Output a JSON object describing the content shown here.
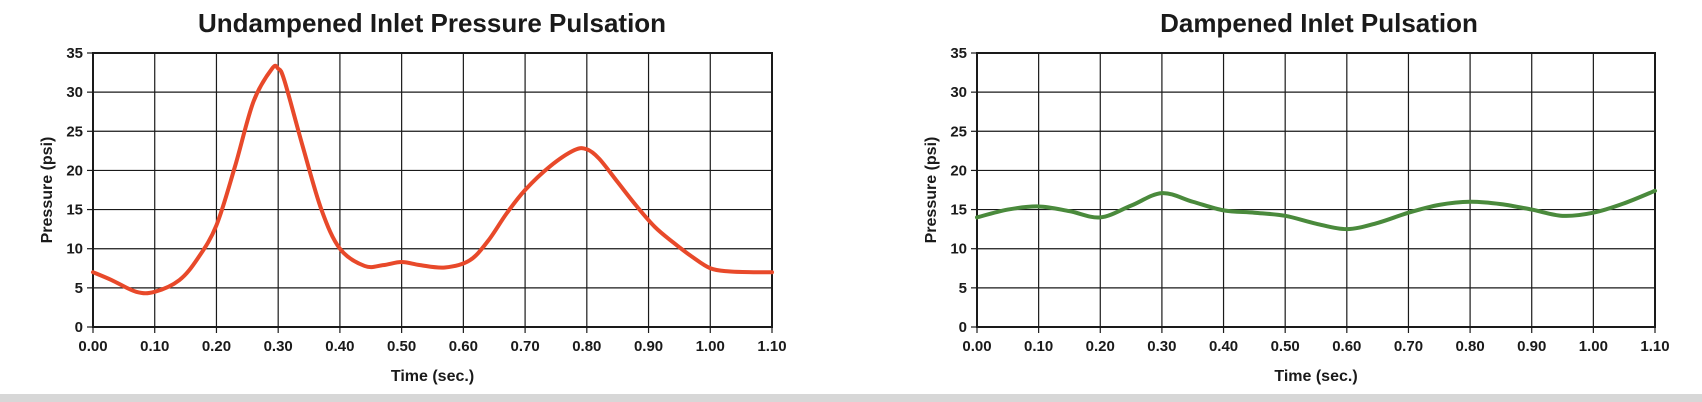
{
  "chart_data": [
    {
      "type": "line",
      "title": "Undampened Inlet Pressure Pulsation",
      "xlabel": "Time (sec.)",
      "ylabel": "Pressure (psi)",
      "xlim": [
        0,
        1.1
      ],
      "ylim": [
        0,
        35
      ],
      "xticks": [
        "0.00",
        "0.10",
        "0.20",
        "0.30",
        "0.40",
        "0.50",
        "0.60",
        "0.70",
        "0.80",
        "0.90",
        "1.00",
        "1.10"
      ],
      "yticks": [
        "0",
        "5",
        "10",
        "15",
        "20",
        "25",
        "30",
        "35"
      ],
      "grid": true,
      "series": [
        {
          "color": "#e8492a",
          "x": [
            0.0,
            0.03,
            0.07,
            0.1,
            0.14,
            0.17,
            0.2,
            0.23,
            0.26,
            0.29,
            0.3,
            0.31,
            0.34,
            0.37,
            0.4,
            0.44,
            0.47,
            0.5,
            0.53,
            0.57,
            0.61,
            0.64,
            0.67,
            0.7,
            0.74,
            0.78,
            0.8,
            0.82,
            0.85,
            0.88,
            0.91,
            0.94,
            0.97,
            1.0,
            1.03,
            1.07,
            1.1
          ],
          "y": [
            7.0,
            6.0,
            4.5,
            4.5,
            6.0,
            8.8,
            13.0,
            20.5,
            28.8,
            33.0,
            33.0,
            31.5,
            23.0,
            15.0,
            10.0,
            7.8,
            7.9,
            8.3,
            7.9,
            7.6,
            8.5,
            11.0,
            14.5,
            17.5,
            20.5,
            22.6,
            22.7,
            21.5,
            18.5,
            15.5,
            12.8,
            10.8,
            9.0,
            7.5,
            7.1,
            7.0,
            7.0
          ]
        }
      ]
    },
    {
      "type": "line",
      "title": "Dampened Inlet Pulsation",
      "xlabel": "Time (sec.)",
      "ylabel": "Pressure (psi)",
      "xlim": [
        0,
        1.1
      ],
      "ylim": [
        0,
        35
      ],
      "xticks": [
        "0.00",
        "0.10",
        "0.20",
        "0.30",
        "0.40",
        "0.50",
        "0.60",
        "0.70",
        "0.80",
        "0.90",
        "1.00",
        "1.10"
      ],
      "yticks": [
        "0",
        "5",
        "10",
        "15",
        "20",
        "25",
        "30",
        "35"
      ],
      "grid": true,
      "series": [
        {
          "color": "#4a8a3c",
          "x": [
            0.0,
            0.05,
            0.1,
            0.15,
            0.2,
            0.25,
            0.3,
            0.35,
            0.4,
            0.45,
            0.5,
            0.55,
            0.6,
            0.65,
            0.7,
            0.75,
            0.8,
            0.85,
            0.9,
            0.95,
            1.0,
            1.05,
            1.1
          ],
          "y": [
            14.0,
            15.0,
            15.4,
            14.8,
            14.0,
            15.5,
            17.1,
            16.0,
            14.9,
            14.6,
            14.2,
            13.2,
            12.5,
            13.3,
            14.6,
            15.6,
            16.0,
            15.7,
            15.0,
            14.2,
            14.6,
            15.8,
            17.4
          ]
        }
      ]
    }
  ]
}
